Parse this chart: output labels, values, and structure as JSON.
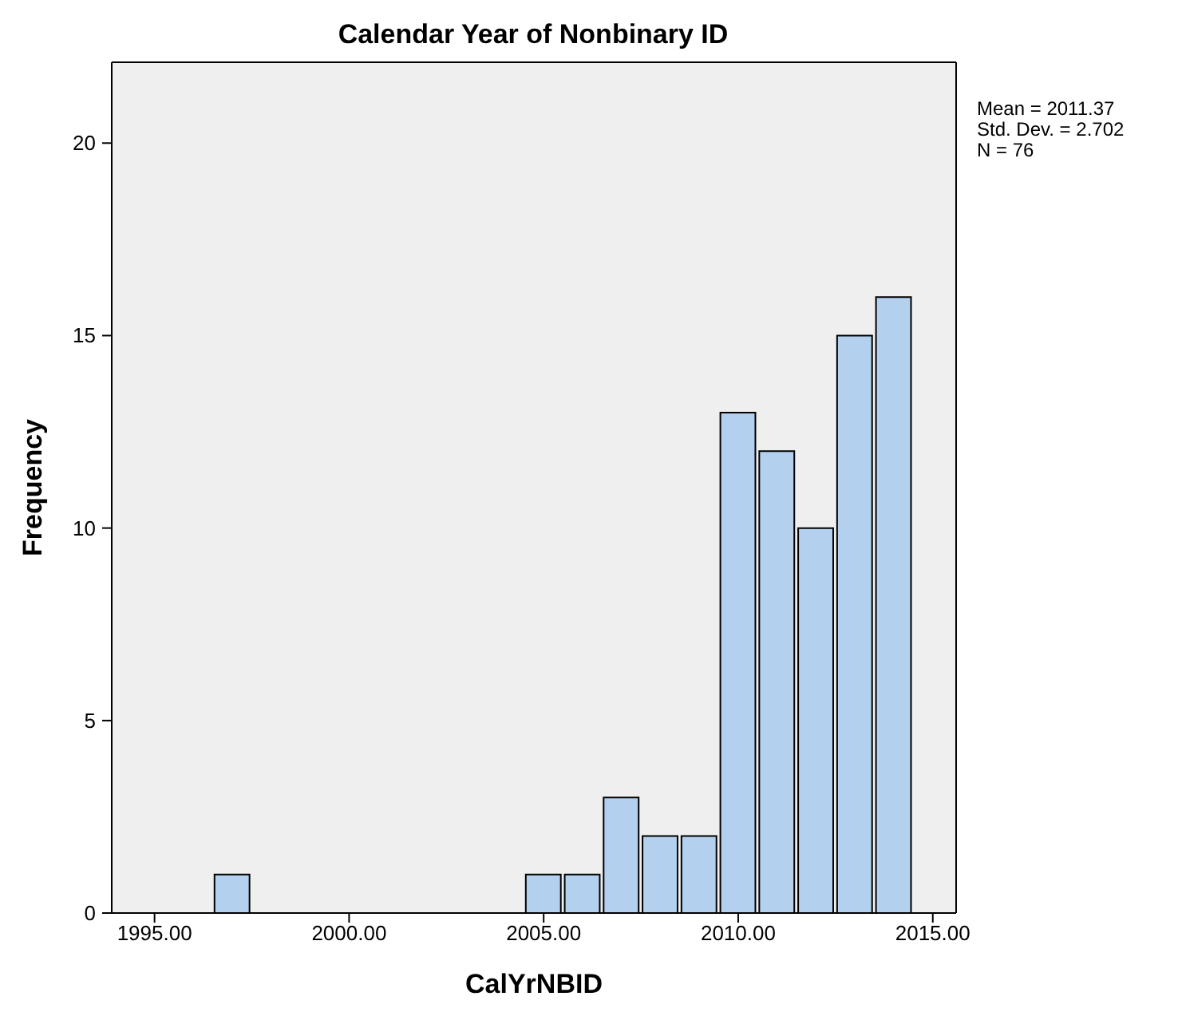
{
  "chart_data": {
    "type": "histogram",
    "title": "Calendar Year of Nonbinary ID",
    "xlabel": "CalYrNBID",
    "ylabel": "Frequency",
    "bins": [
      1996.5,
      1997.5,
      1998.5,
      1999.5,
      2000.5,
      2001.5,
      2002.5,
      2003.5,
      2004.5,
      2005.5,
      2006.5,
      2007.5,
      2008.5,
      2009.5,
      2010.5,
      2011.5,
      2012.5,
      2013.5,
      2014.5
    ],
    "values": [
      1,
      0,
      0,
      0,
      0,
      0,
      0,
      0,
      1,
      1,
      3,
      2,
      2,
      13,
      12,
      10,
      15,
      16
    ],
    "color": "#b3d1ef",
    "xlim": [
      1993.9,
      2015.6
    ],
    "ylim": [
      0,
      22.1
    ],
    "xticks": [
      {
        "value": 1995,
        "label": "1995.00"
      },
      {
        "value": 2000,
        "label": "2000.00"
      },
      {
        "value": 2005,
        "label": "2005.00"
      },
      {
        "value": 2010,
        "label": "2010.00"
      },
      {
        "value": 2015,
        "label": "2015.00"
      }
    ],
    "yticks": [
      0,
      5,
      10,
      15,
      20
    ],
    "grid": false,
    "legend": false,
    "annotations": [
      "Mean = 2011.37",
      "Std. Dev. = 2.702",
      "N = 76"
    ]
  }
}
